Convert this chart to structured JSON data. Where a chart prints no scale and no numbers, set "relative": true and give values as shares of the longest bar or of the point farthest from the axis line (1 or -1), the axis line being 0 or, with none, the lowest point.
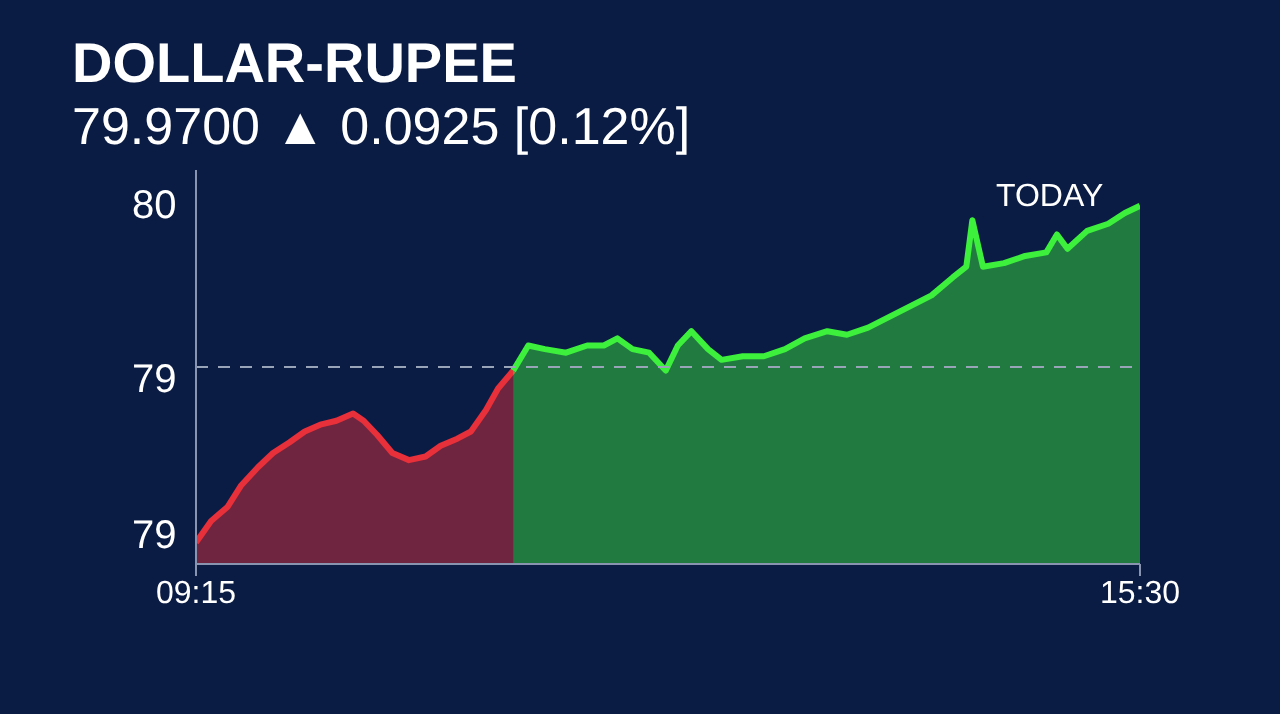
{
  "chart_data": {
    "type": "area",
    "title": "DOLLAR-RUPEE",
    "subtitle": "79.9700 ▲ 0.0925 [0.12%]",
    "relative": true,
    "annotations": [
      "TODAY",
      "80",
      "79",
      "79"
    ],
    "x": [
      9.25,
      9.35,
      9.46,
      9.55,
      9.66,
      9.76,
      9.87,
      9.97,
      10.08,
      10.18,
      10.29,
      10.36,
      10.45,
      10.55,
      10.66,
      10.77,
      10.87,
      10.98,
      11.07,
      11.17,
      11.25,
      11.35,
      11.45,
      11.56,
      11.7,
      11.84,
      11.95,
      12.04,
      12.14,
      12.25,
      12.36,
      12.44,
      12.53,
      12.64,
      12.73,
      12.87,
      13.01,
      13.15,
      13.28,
      13.43,
      13.56,
      13.7,
      13.84,
      13.98,
      14.12,
      14.26,
      14.35,
      14.39,
      14.46,
      14.6,
      14.74,
      14.88,
      14.95,
      15.02,
      15.15,
      15.29,
      15.4,
      15.5
    ],
    "series": [
      {
        "color": "#e8303a",
        "values": [
          0.06,
          0.12,
          0.16,
          0.22,
          0.27,
          0.31,
          0.34,
          0.37,
          0.39,
          0.4,
          0.42,
          0.4,
          0.36,
          0.31,
          0.29,
          0.3,
          0.33,
          0.35,
          0.37,
          0.43,
          0.49,
          0.54,
          null,
          null,
          null,
          null,
          null,
          null,
          null,
          null,
          null,
          null,
          null,
          null,
          null,
          null,
          null,
          null,
          null,
          null,
          null,
          null,
          null,
          null,
          null,
          null,
          null,
          null,
          null,
          null,
          null,
          null,
          null,
          null,
          null,
          null,
          null,
          null
        ]
      },
      {
        "color": "#3cf03c",
        "values": [
          null,
          null,
          null,
          null,
          null,
          null,
          null,
          null,
          null,
          null,
          null,
          null,
          null,
          null,
          null,
          null,
          null,
          null,
          null,
          null,
          null,
          0.54,
          0.61,
          0.6,
          0.59,
          0.61,
          0.61,
          0.63,
          0.6,
          0.59,
          0.54,
          0.61,
          0.65,
          0.6,
          0.57,
          0.58,
          0.58,
          0.6,
          0.63,
          0.65,
          0.64,
          0.66,
          0.69,
          0.72,
          0.75,
          0.8,
          0.83,
          0.96,
          0.83,
          0.84,
          0.86,
          0.87,
          0.92,
          0.88,
          0.93,
          0.95,
          0.98,
          1
        ]
      }
    ],
    "xlim": [
      9.25,
      15.5
    ],
    "xticks": [
      {
        "value": 9.25,
        "label": "09:15"
      },
      {
        "value": 15.5,
        "label": "15:30"
      }
    ],
    "ref_lines": [
      {
        "axis": "y",
        "value": 0.55,
        "color": "#9aa4b8",
        "line_style": "dashed"
      }
    ],
    "grid": false
  }
}
